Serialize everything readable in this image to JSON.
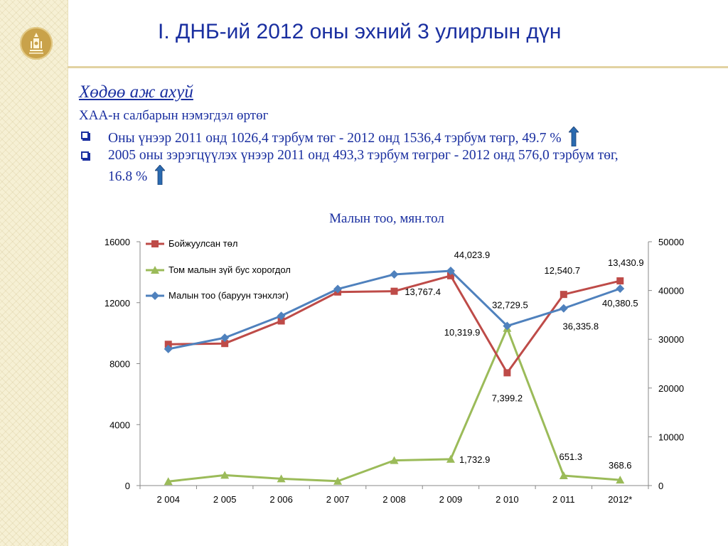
{
  "header": {
    "title": "I. ДНБ-ий 2012 оны эхний 3 улирлын дүн"
  },
  "content": {
    "section_heading": "Хөдөө аж ахуй",
    "subheading": "ХАА-н салбарын нэмэгдэл өртөг",
    "bullets": [
      {
        "text_line1": "Оны үнээр 2011 онд 1026,4 тэрбум төг  - 2012 онд  1536,4 тэрбум төгр, 49.7 %",
        "text_line2": ""
      },
      {
        "text_line1": "2005 оны зэрэгцүүлэх үнээр 2011 онд 493,3 тэрбум төгрөг - 2012 онд 576,0 тэрбум төг,",
        "text_line2": "16.8 %"
      }
    ],
    "arrow_icon": "up-arrow-icon",
    "colors": {
      "text": "#1a2fa0",
      "arrow": "#2a6ab0"
    }
  },
  "chart_data": {
    "type": "line",
    "title": "Малын тоо, мян.тол",
    "categories": [
      "2 004",
      "2 005",
      "2 006",
      "2 007",
      "2 008",
      "2 009",
      "2 010",
      "2 011",
      "2012*"
    ],
    "left_axis": {
      "ylim": [
        0,
        16000
      ],
      "ticks": [
        "0",
        "4000",
        "8000",
        "12000",
        "16000"
      ]
    },
    "right_axis": {
      "ylim": [
        0,
        50000
      ],
      "ticks": [
        "0",
        "10000",
        "20000",
        "30000",
        "40000",
        "50000"
      ]
    },
    "series": [
      {
        "name": "Бойжуулсан төл",
        "axis": "left",
        "color": "#be4b48",
        "marker": "square",
        "values": [
          9270,
          9320,
          10800,
          12700,
          12750,
          13767.4,
          7399.2,
          12540.7,
          13430.9
        ]
      },
      {
        "name": "Том малын зүй бус хорогдол",
        "axis": "left",
        "color": "#9bbb59",
        "marker": "triangle",
        "values": [
          270,
          680,
          450,
          290,
          1650,
          1732.9,
          10319.9,
          651.3,
          368.6
        ]
      },
      {
        "name": "Малын тоо (баруун тэнхлэг)",
        "axis": "right",
        "color": "#4f81bd",
        "marker": "diamond",
        "values": [
          28000,
          30300,
          34800,
          40300,
          43300,
          44023.9,
          32729.5,
          36335.8,
          40380.5
        ]
      }
    ],
    "legend_position": "top-left",
    "data_labels": [
      {
        "text": "44,023.9",
        "category": "2 009",
        "series": "Малын тоо (баруун тэнхлэг)"
      },
      {
        "text": "13,767.4",
        "category": "2 009",
        "series": "Бойжуулсан төл"
      },
      {
        "text": "1,732.9",
        "category": "2 009",
        "series": "Том малын зүй бус хорогдол"
      },
      {
        "text": "32,729.5",
        "category": "2 010",
        "series": "Малын тоо (баруун тэнхлэг)"
      },
      {
        "text": "10,319.9",
        "category": "2 010",
        "series": "Том малын зүй бус хорогдол"
      },
      {
        "text": "7,399.2",
        "category": "2 010",
        "series": "Бойжуулсан төл"
      },
      {
        "text": "12,540.7",
        "category": "2 011",
        "series": "Бойжуулсан төл"
      },
      {
        "text": "36,335.8",
        "category": "2 011",
        "series": "Малын тоо (баруун тэнхлэг)"
      },
      {
        "text": "651.3",
        "category": "2 011",
        "series": "Том малын зүй бус хорогдол"
      },
      {
        "text": "13,430.9",
        "category": "2012*",
        "series": "Бойжуулсан төл"
      },
      {
        "text": "40,380.5",
        "category": "2012*",
        "series": "Малын тоо (баруун тэнхлэг)"
      },
      {
        "text": "368.6",
        "category": "2012*",
        "series": "Том малын зүй бус хорогдол"
      }
    ]
  }
}
